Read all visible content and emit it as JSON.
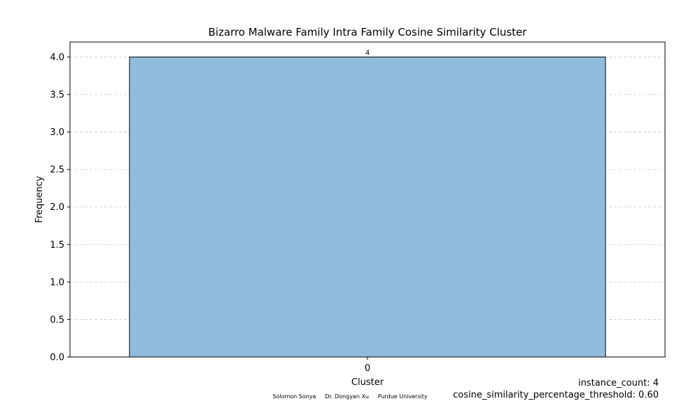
{
  "chart_data": {
    "type": "bar",
    "title": "Bizarro Malware Family Intra Family Cosine Similarity Cluster",
    "xlabel": "Cluster",
    "ylabel": "Frequency",
    "categories": [
      "0"
    ],
    "values": [
      4
    ],
    "data_labels": [
      "4"
    ],
    "ylim": [
      0,
      4.2
    ],
    "yticks": [
      "0.0",
      "0.5",
      "1.0",
      "1.5",
      "2.0",
      "2.5",
      "3.0",
      "3.5",
      "4.0"
    ],
    "grid": true,
    "bar_color": "#92bcdc",
    "bar_edge_color": "#000000",
    "grid_color": "#cccccc"
  },
  "annotations": {
    "instance_count": "instance_count: 4",
    "threshold": "cosine_similarity_percentage_threshold: 0.60"
  },
  "credits": {
    "author1": "Solomon Sonya",
    "author2": "Dr. Dongyan Xu",
    "affiliation": "Purdue University"
  }
}
